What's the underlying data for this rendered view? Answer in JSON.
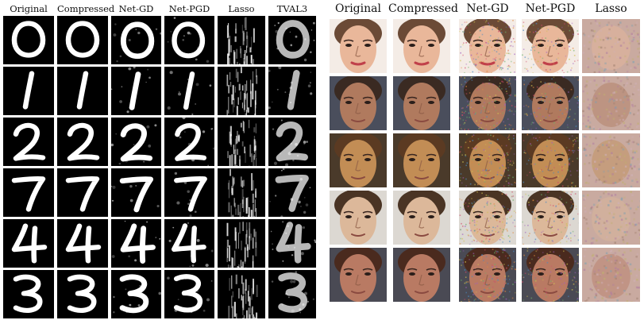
{
  "mnist": {
    "columns": [
      "Original",
      "Compressed",
      "Net-GD",
      "Net-PGD",
      "Lasso",
      "TVAL3"
    ],
    "digits": [
      "0",
      "1",
      "2",
      "7",
      "4",
      "3"
    ]
  },
  "faces": {
    "columns": [
      "Original",
      "Compressed",
      "Net-GD",
      "Net-PGD",
      "Lasso"
    ],
    "rows": [
      "face-1",
      "face-2",
      "face-3",
      "face-4",
      "face-5"
    ],
    "skin_tones": [
      "#e9b79a",
      "#b07a5e",
      "#c28d55",
      "#dcb89a",
      "#b97a63"
    ],
    "hair_tones": [
      "#6b4a36",
      "#3a2a22",
      "#5b3a22",
      "#4a3424",
      "#4a2a1e"
    ]
  }
}
